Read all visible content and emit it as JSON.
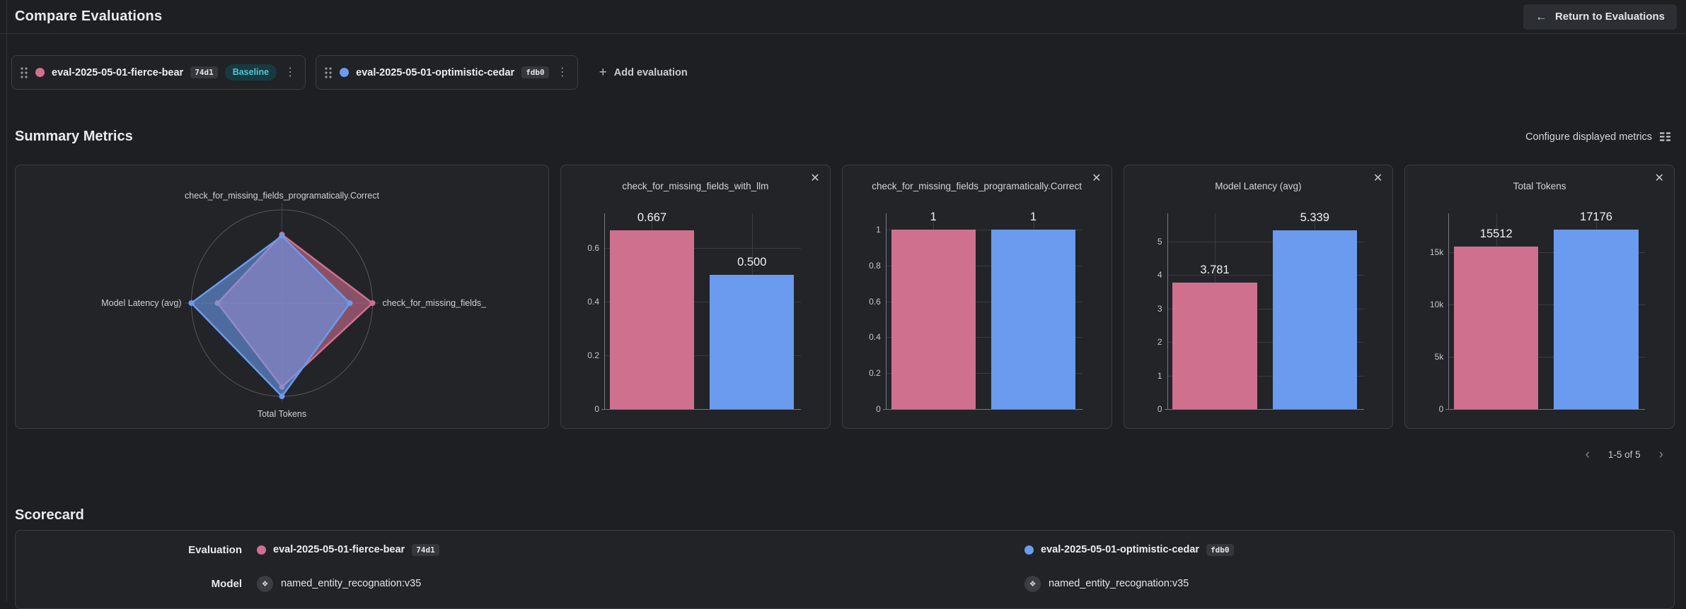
{
  "header": {
    "title": "Compare Evaluations",
    "return_label": "Return to Evaluations"
  },
  "icons": {
    "back_arrow": "←",
    "plus": "+",
    "close": "✕",
    "prev_chevron": "‹",
    "next_chevron": "›",
    "kebab": "⋮",
    "model_glyph": "❖"
  },
  "colors": {
    "pink": "#d0708f",
    "blue": "#6a9bee",
    "baseline_badge_text": "#53c6d4",
    "baseline_badge_bg": "#163a40"
  },
  "evaluations": [
    {
      "name": "eval-2025-05-01-fierce-bear",
      "id": "74d1",
      "baseline_label": "Baseline",
      "color": "#d0708f"
    },
    {
      "name": "eval-2025-05-01-optimistic-cedar",
      "id": "fdb0",
      "color": "#6a9bee"
    }
  ],
  "add_evaluation_label": "Add evaluation",
  "summary": {
    "title": "Summary Metrics",
    "configure_label": "Configure displayed metrics",
    "pagination_label": "1-5 of 5"
  },
  "chart_data": [
    {
      "type": "radar",
      "series": [
        {
          "name": "eval-2025-05-01-fierce-bear",
          "color": "#d0708f"
        },
        {
          "name": "eval-2025-05-01-optimistic-cedar",
          "color": "#6a9bee"
        }
      ],
      "axes": [
        {
          "label": "check_for_missing_fields_programatically.Correct",
          "position": "top",
          "values": [
            1,
            1
          ],
          "r": [
            0.735,
            0.72
          ]
        },
        {
          "label": "check_for_missing_fields_",
          "position": "right",
          "values": [
            0.667,
            0.5
          ],
          "r": [
            1.0,
            0.75
          ]
        },
        {
          "label": "Total Tokens",
          "position": "bottom",
          "values": [
            15512,
            17176
          ],
          "r": [
            0.9,
            1.0
          ]
        },
        {
          "label": "Model Latency (avg)",
          "position": "left",
          "values": [
            3.781,
            5.339
          ],
          "r": [
            0.71,
            1.0
          ]
        }
      ]
    },
    {
      "type": "bar",
      "title": "check_for_missing_fields_with_llm",
      "categories": [
        "eval-2025-05-01-fierce-bear",
        "eval-2025-05-01-optimistic-cedar"
      ],
      "series_colors": [
        "#d0708f",
        "#6a9bee"
      ],
      "values": [
        0.667,
        0.5
      ],
      "value_labels": [
        "0.667",
        "0.500"
      ],
      "ymax": 0.73,
      "yticks": [
        {
          "v": 0,
          "label": "0"
        },
        {
          "v": 0.2,
          "label": "0.2"
        },
        {
          "v": 0.4,
          "label": "0.4"
        },
        {
          "v": 0.6,
          "label": "0.6"
        }
      ]
    },
    {
      "type": "bar",
      "title": "check_for_missing_fields_programatically.Correct",
      "categories": [
        "eval-2025-05-01-fierce-bear",
        "eval-2025-05-01-optimistic-cedar"
      ],
      "series_colors": [
        "#d0708f",
        "#6a9bee"
      ],
      "values": [
        1,
        1
      ],
      "value_labels": [
        "1",
        "1"
      ],
      "ymax": 1.09,
      "yticks": [
        {
          "v": 0,
          "label": "0"
        },
        {
          "v": 0.2,
          "label": "0.2"
        },
        {
          "v": 0.4,
          "label": "0.4"
        },
        {
          "v": 0.6,
          "label": "0.6"
        },
        {
          "v": 0.8,
          "label": "0.8"
        },
        {
          "v": 1,
          "label": "1"
        }
      ]
    },
    {
      "type": "bar",
      "title": "Model Latency (avg)",
      "categories": [
        "eval-2025-05-01-fierce-bear",
        "eval-2025-05-01-optimistic-cedar"
      ],
      "series_colors": [
        "#d0708f",
        "#6a9bee"
      ],
      "values": [
        3.781,
        5.339
      ],
      "value_labels": [
        "3.781",
        "5.339"
      ],
      "ymax": 5.835,
      "yticks": [
        {
          "v": 0,
          "label": "0"
        },
        {
          "v": 1,
          "label": "1"
        },
        {
          "v": 2,
          "label": "2"
        },
        {
          "v": 3,
          "label": "3"
        },
        {
          "v": 4,
          "label": "4"
        },
        {
          "v": 5,
          "label": "5"
        }
      ]
    },
    {
      "type": "bar",
      "title": "Total Tokens",
      "categories": [
        "eval-2025-05-01-fierce-bear",
        "eval-2025-05-01-optimistic-cedar"
      ],
      "series_colors": [
        "#d0708f",
        "#6a9bee"
      ],
      "values": [
        15512,
        17176
      ],
      "value_labels": [
        "15512",
        "17176"
      ],
      "ymax": 18700,
      "yticks": [
        {
          "v": 0,
          "label": "0"
        },
        {
          "v": 5000,
          "label": "5k"
        },
        {
          "v": 10000,
          "label": "10k"
        },
        {
          "v": 15000,
          "label": "15k"
        }
      ]
    }
  ],
  "scorecard": {
    "title": "Scorecard",
    "row_labels": [
      "Evaluation",
      "Model"
    ],
    "columns": [
      {
        "evaluation": {
          "name": "eval-2025-05-01-fierce-bear",
          "id": "74d1",
          "color": "#d0708f"
        },
        "model": "named_entity_recognation:v35"
      },
      {
        "evaluation": {
          "name": "eval-2025-05-01-optimistic-cedar",
          "id": "fdb0",
          "color": "#6a9bee"
        },
        "model": "named_entity_recognation:v35"
      }
    ]
  }
}
